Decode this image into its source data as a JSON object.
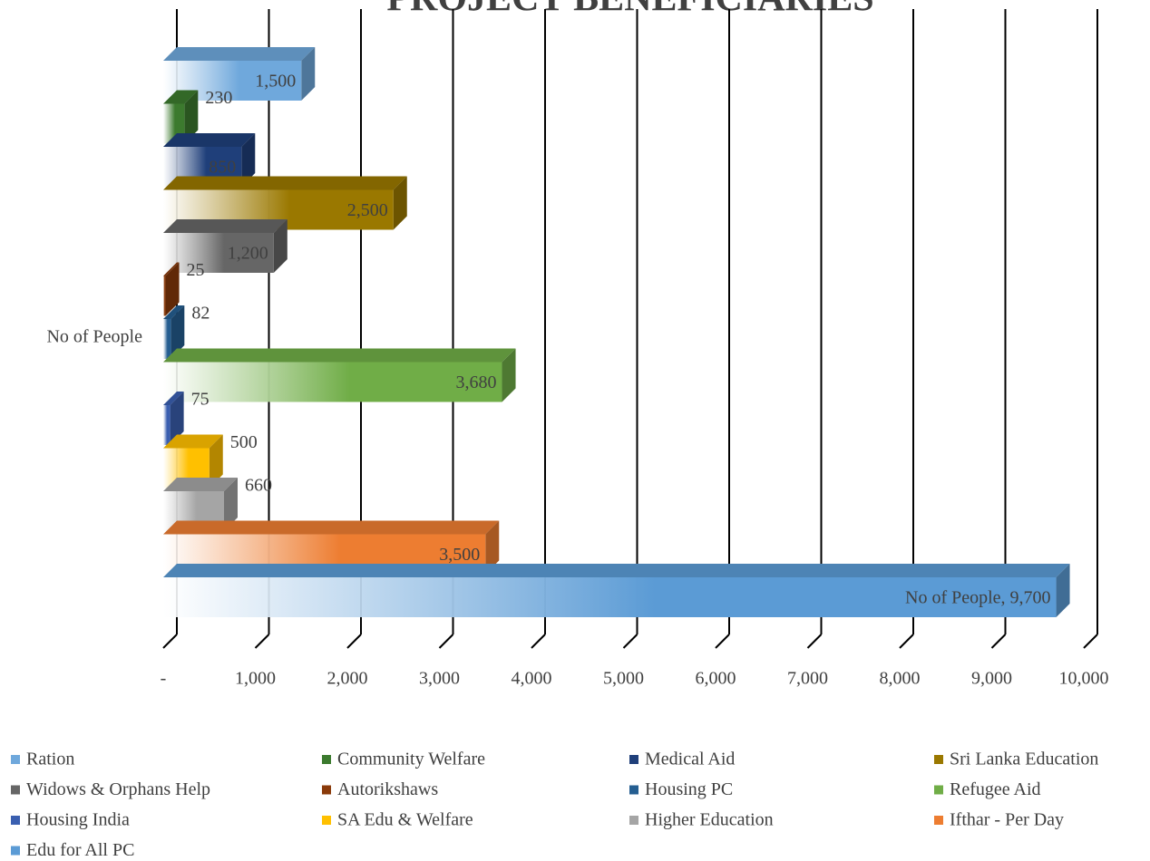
{
  "chart_data": {
    "type": "bar3d_horizontal",
    "title": "PROJECT BENEFICIARIES",
    "categories": [
      "No of People"
    ],
    "series": [
      {
        "name": "Ration",
        "color": "#6fa8dc",
        "values": [
          1500
        ],
        "value_labels": [
          "1,500"
        ]
      },
      {
        "name": "Community Welfare",
        "color": "#3c7a2e",
        "values": [
          230
        ],
        "value_labels": [
          "230"
        ]
      },
      {
        "name": "Medical Aid",
        "color": "#1f3f7a",
        "values": [
          850
        ],
        "value_labels": [
          "850"
        ]
      },
      {
        "name": "Sri Lanka Education",
        "color": "#9a7800",
        "values": [
          2500
        ],
        "value_labels": [
          "2,500"
        ]
      },
      {
        "name": "Widows & Orphans Help",
        "color": "#666666",
        "values": [
          1200
        ],
        "value_labels": [
          "1,200"
        ]
      },
      {
        "name": "Autorikshaws",
        "color": "#8a3a0a",
        "values": [
          25
        ],
        "value_labels": [
          "25"
        ]
      },
      {
        "name": "Housing PC",
        "color": "#255e91",
        "values": [
          82
        ],
        "value_labels": [
          "82"
        ]
      },
      {
        "name": "Refugee Aid",
        "color": "#70ad47",
        "values": [
          3680
        ],
        "value_labels": [
          "3,680"
        ]
      },
      {
        "name": "Housing India",
        "color": "#3a5fb0",
        "values": [
          75
        ],
        "value_labels": [
          "75"
        ]
      },
      {
        "name": "SA Edu & Welfare",
        "color": "#ffc000",
        "values": [
          500
        ],
        "value_labels": [
          "500"
        ]
      },
      {
        "name": "Higher Education",
        "color": "#a5a5a5",
        "values": [
          660
        ],
        "value_labels": [
          "660"
        ]
      },
      {
        "name": "Ifthar - Per Day",
        "color": "#ed7d31",
        "values": [
          3500
        ],
        "value_labels": [
          "3,500"
        ]
      },
      {
        "name": "Edu for All PC",
        "color": "#5b9bd5",
        "values": [
          9700
        ],
        "value_labels": [
          "No of People,  9,700"
        ]
      }
    ],
    "xlim": [
      0,
      10000
    ],
    "xticks": [
      {
        "value": 0,
        "label": "-"
      },
      {
        "value": 1000,
        "label": "1,000"
      },
      {
        "value": 2000,
        "label": "2,000"
      },
      {
        "value": 3000,
        "label": "3,000"
      },
      {
        "value": 4000,
        "label": "4,000"
      },
      {
        "value": 5000,
        "label": "5,000"
      },
      {
        "value": 6000,
        "label": "6,000"
      },
      {
        "value": 7000,
        "label": "7,000"
      },
      {
        "value": 8000,
        "label": "8,000"
      },
      {
        "value": 9000,
        "label": "9,000"
      },
      {
        "value": 10000,
        "label": "10,000"
      }
    ],
    "grid": true,
    "legend": "bottom"
  }
}
